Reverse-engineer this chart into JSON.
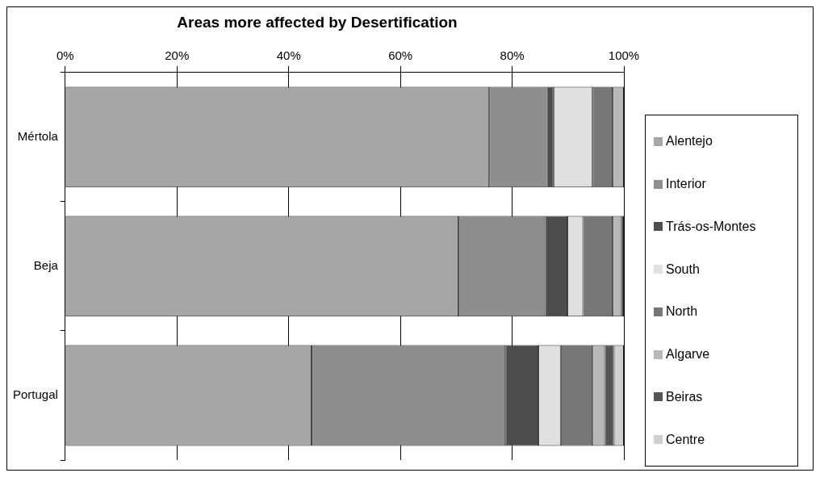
{
  "chart_data": {
    "type": "bar",
    "orientation": "horizontal",
    "stacked": true,
    "title": "Areas more affected by Desertification",
    "categories": [
      "Mértola",
      "Beja",
      "Portugal"
    ],
    "series": [
      {
        "name": "Alentejo",
        "color": "#a6a6a6",
        "values": [
          75.9,
          70.4,
          44.1
        ]
      },
      {
        "name": "Interior",
        "color": "#8e8e8e",
        "values": [
          10.3,
          15.5,
          34.7
        ]
      },
      {
        "name": "Trás-os-Montes",
        "color": "#4d4d4d",
        "values": [
          1.2,
          4,
          5.9
        ]
      },
      {
        "name": "South",
        "color": "#e0e0e0",
        "values": [
          7,
          2.8,
          4
        ]
      },
      {
        "name": "North",
        "color": "#777777",
        "values": [
          3.6,
          5.3,
          5.7
        ]
      },
      {
        "name": "Algarve",
        "color": "#b8b8b8",
        "values": [
          2,
          1.5,
          2.2
        ]
      },
      {
        "name": "Beiras",
        "color": "#555555",
        "values": [
          0,
          0.5,
          1.6
        ]
      },
      {
        "name": "Centre",
        "color": "#d0d0d0",
        "values": [
          0,
          0,
          1.8
        ]
      }
    ],
    "xlim": [
      0,
      100
    ],
    "xticks": [
      {
        "value": 0,
        "label": "0%"
      },
      {
        "value": 20,
        "label": "20%"
      },
      {
        "value": 40,
        "label": "40%"
      },
      {
        "value": 60,
        "label": "60%"
      },
      {
        "value": 80,
        "label": "80%"
      },
      {
        "value": 100,
        "label": "100%"
      }
    ],
    "grid": "x",
    "legend": "right"
  }
}
